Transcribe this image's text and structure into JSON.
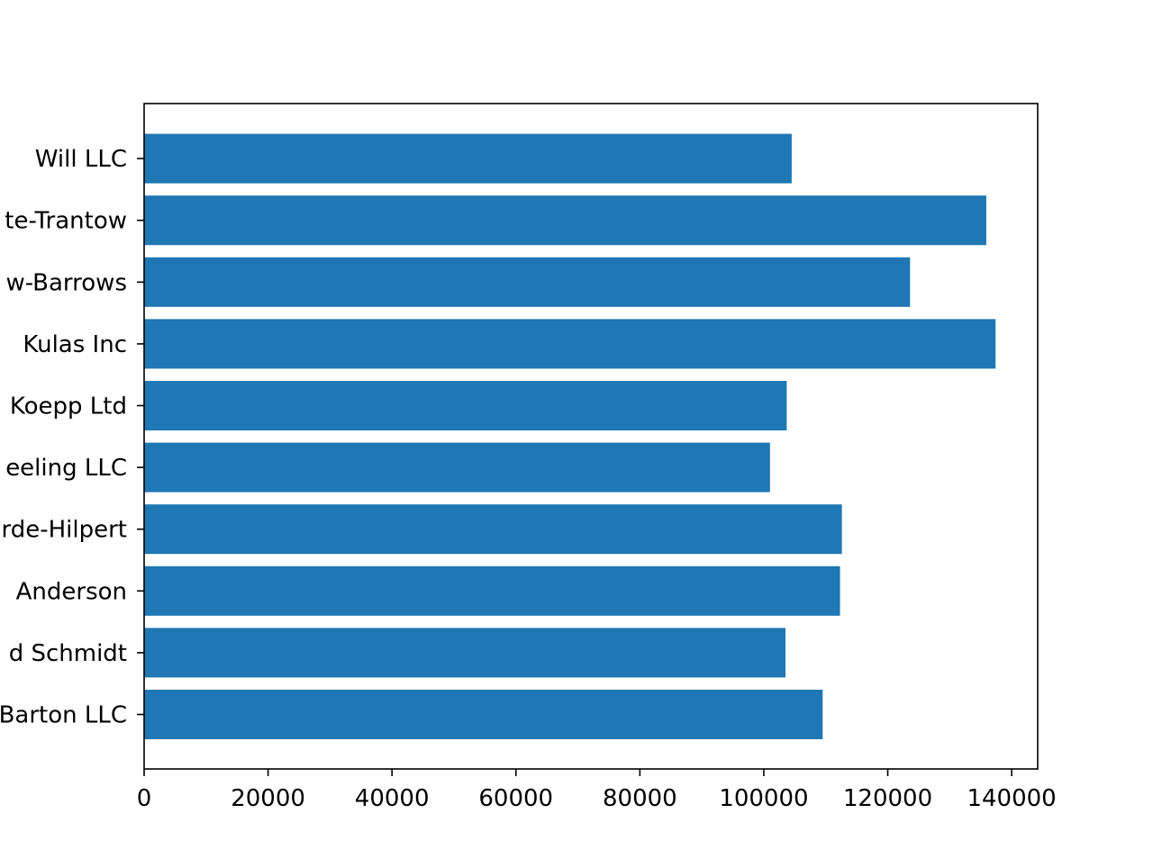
{
  "chart_data": {
    "type": "bar",
    "orientation": "horizontal",
    "categories": [
      "Barton LLC",
      "d Schmidt",
      "Anderson",
      "rde-Hilpert",
      "eeling LLC",
      "Koepp Ltd",
      "Kulas Inc",
      "w-Barrows",
      "te-Trantow",
      "Will LLC"
    ],
    "values": [
      109500,
      103500,
      112300,
      112600,
      101000,
      103700,
      137400,
      123600,
      135900,
      104500
    ],
    "xticks": [
      0,
      20000,
      40000,
      60000,
      80000,
      100000,
      120000,
      140000
    ],
    "xlim": [
      0,
      144200
    ],
    "title": "",
    "xlabel": "",
    "ylabel": "",
    "grid": false,
    "colors": {
      "bar": "#1f77b4",
      "axis": "#000000",
      "background": "#ffffff"
    }
  }
}
